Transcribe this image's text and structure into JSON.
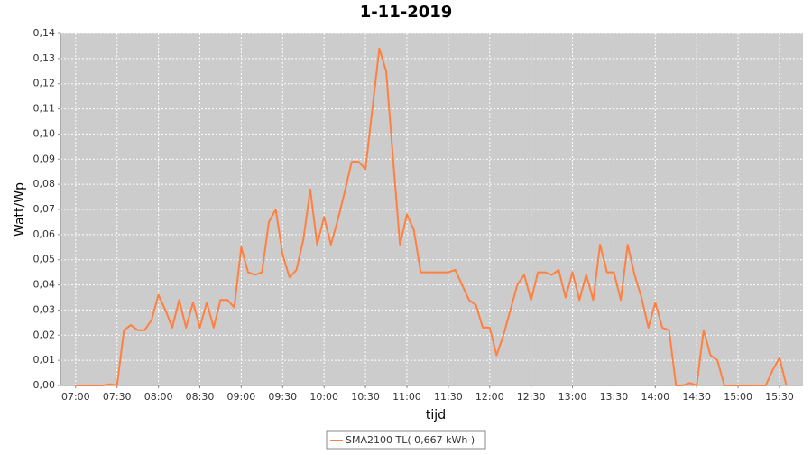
{
  "chart_data": {
    "type": "line",
    "title": "1-11-2019",
    "x_label": "tijd",
    "y_label": "Watt/Wp",
    "x": [
      "07:00",
      "07:05",
      "07:10",
      "07:15",
      "07:20",
      "07:25",
      "07:30",
      "07:35",
      "07:40",
      "07:45",
      "07:50",
      "07:55",
      "08:00",
      "08:05",
      "08:10",
      "08:15",
      "08:20",
      "08:25",
      "08:30",
      "08:35",
      "08:40",
      "08:45",
      "08:50",
      "08:55",
      "09:00",
      "09:05",
      "09:10",
      "09:15",
      "09:20",
      "09:25",
      "09:30",
      "09:35",
      "09:40",
      "09:45",
      "09:50",
      "09:55",
      "10:00",
      "10:05",
      "10:10",
      "10:15",
      "10:20",
      "10:25",
      "10:30",
      "10:35",
      "10:40",
      "10:45",
      "10:50",
      "10:55",
      "11:00",
      "11:05",
      "11:10",
      "11:15",
      "11:20",
      "11:25",
      "11:30",
      "11:35",
      "11:40",
      "11:45",
      "11:50",
      "11:55",
      "12:00",
      "12:05",
      "12:10",
      "12:15",
      "12:20",
      "12:25",
      "12:30",
      "12:35",
      "12:40",
      "12:45",
      "12:50",
      "12:55",
      "13:00",
      "13:05",
      "13:10",
      "13:15",
      "13:20",
      "13:25",
      "13:30",
      "13:35",
      "13:40",
      "13:45",
      "13:50",
      "13:55",
      "14:00",
      "14:05",
      "14:10",
      "14:15",
      "14:20",
      "14:25",
      "14:30",
      "14:35",
      "14:40",
      "14:45",
      "14:50",
      "14:55",
      "15:00",
      "15:05",
      "15:10",
      "15:15",
      "15:20",
      "15:25",
      "15:30",
      "15:35"
    ],
    "series": [
      {
        "name": "SMA2100 TL( 0,667 kWh )",
        "color": "#ff8040",
        "values": [
          0,
          0,
          0,
          0,
          0,
          0.0005,
          0,
          0.022,
          0.024,
          0.022,
          0.022,
          0.026,
          0.036,
          0.03,
          0.023,
          0.034,
          0.023,
          0.033,
          0.023,
          0.033,
          0.023,
          0.034,
          0.034,
          0.031,
          0.055,
          0.045,
          0.044,
          0.045,
          0.065,
          0.07,
          0.052,
          0.043,
          0.046,
          0.058,
          0.078,
          0.056,
          0.067,
          0.056,
          0.066,
          0.077,
          0.089,
          0.089,
          0.086,
          0.11,
          0.134,
          0.125,
          0.09,
          0.056,
          0.068,
          0.062,
          0.045,
          0.045,
          0.045,
          0.045,
          0.045,
          0.046,
          0.04,
          0.034,
          0.032,
          0.023,
          0.023,
          0.012,
          0.02,
          0.03,
          0.04,
          0.044,
          0.034,
          0.045,
          0.045,
          0.044,
          0.046,
          0.035,
          0.045,
          0.034,
          0.044,
          0.034,
          0.056,
          0.045,
          0.045,
          0.034,
          0.056,
          0.044,
          0.035,
          0.023,
          0.033,
          0.023,
          0.022,
          0,
          0,
          0.001,
          0,
          0.022,
          0.012,
          0.01,
          0,
          0,
          0,
          0,
          0,
          0,
          0,
          0.006,
          0.011,
          0
        ]
      }
    ],
    "xlim": [
      "06:49",
      "15:47"
    ],
    "xticks": [
      "07:00",
      "07:30",
      "08:00",
      "08:30",
      "09:00",
      "09:30",
      "10:00",
      "10:30",
      "11:00",
      "11:30",
      "12:00",
      "12:30",
      "13:00",
      "13:30",
      "14:00",
      "14:30",
      "15:00",
      "15:30"
    ],
    "ylim": [
      0,
      0.14
    ],
    "yticks": [
      {
        "value": 0,
        "label": "0,00"
      },
      {
        "value": 0.01,
        "label": "0,01"
      },
      {
        "value": 0.02,
        "label": "0,02"
      },
      {
        "value": 0.03,
        "label": "0,03"
      },
      {
        "value": 0.04,
        "label": "0,04"
      },
      {
        "value": 0.05,
        "label": "0,05"
      },
      {
        "value": 0.06,
        "label": "0,06"
      },
      {
        "value": 0.07,
        "label": "0,07"
      },
      {
        "value": 0.08,
        "label": "0,08"
      },
      {
        "value": 0.09,
        "label": "0,09"
      },
      {
        "value": 0.1,
        "label": "0,10"
      },
      {
        "value": 0.11,
        "label": "0,11"
      },
      {
        "value": 0.12,
        "label": "0,12"
      },
      {
        "value": 0.13,
        "label": "0,13"
      },
      {
        "value": 0.14,
        "label": "0,14"
      }
    ],
    "grid": true
  }
}
